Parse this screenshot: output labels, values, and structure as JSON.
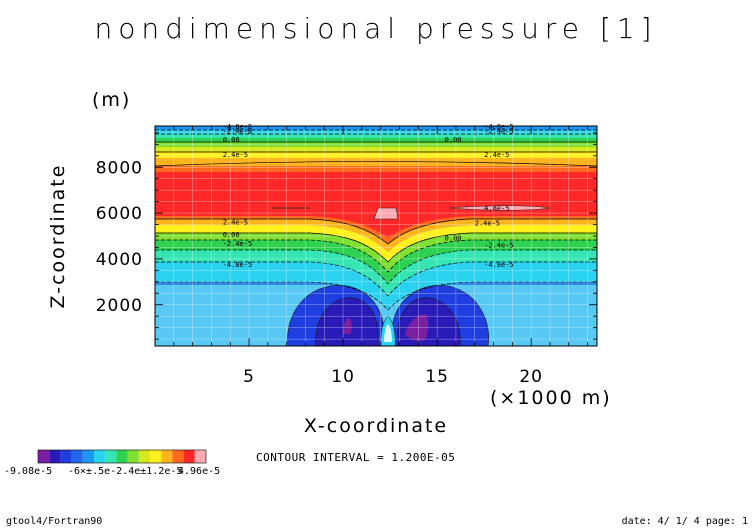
{
  "chart_data": {
    "type": "heatmap",
    "title": "nondimensional pressure [1]",
    "xlabel": "X-coordinate",
    "ylabel": "Z-coordinate",
    "x_unit": "(×1000 m)",
    "y_unit": "(m)",
    "xlim": [
      0.0,
      23.5
    ],
    "ylim": [
      200,
      9800
    ],
    "x_ticks": [
      5,
      10,
      15,
      20
    ],
    "y_ticks": [
      2000,
      4000,
      6000,
      8000
    ],
    "grid": true,
    "colorbar": {
      "colors": [
        "#7a1fa2",
        "#2a1ab8",
        "#1e3ee0",
        "#2466f0",
        "#1e96f5",
        "#2ad2f0",
        "#35e6b4",
        "#2ed250",
        "#7ee030",
        "#d8e81e",
        "#fff01e",
        "#ffb41e",
        "#ff6a1e",
        "#ff2828",
        "#ffaab4"
      ],
      "min_label": "-9.08e-5",
      "tick_labels": [
        "-9.08e-5",
        "-6.4e-5",
        "-5.0e-5",
        "-2.4e-5",
        "1.2e-5",
        "4.96e-5"
      ],
      "overlap_text": "-6×±.5e-2.4e±1.2e-5",
      "max_label": "4.96e-5"
    },
    "contour_interval_text": "CONTOUR INTERVAL =  1.200E-05",
    "contour_labels": [
      {
        "text": "-4.8e-5",
        "x": 3.6,
        "z": 9720
      },
      {
        "text": "-2.4e-5",
        "x": 3.6,
        "z": 9520
      },
      {
        "text": "0.00",
        "x": 3.6,
        "z": 9150
      },
      {
        "text": "2.4e-5",
        "x": 3.6,
        "z": 8500
      },
      {
        "text": "-4.8e-5",
        "x": 17.5,
        "z": 9720
      },
      {
        "text": "-2.4e-5",
        "x": 17.5,
        "z": 9520
      },
      {
        "text": "0.00",
        "x": 15.4,
        "z": 9150
      },
      {
        "text": "2.4e-5",
        "x": 17.5,
        "z": 8500
      },
      {
        "text": "4.8e-5",
        "x": 17.5,
        "z": 6150
      },
      {
        "text": "2.4e-5",
        "x": 3.6,
        "z": 5550
      },
      {
        "text": "0.00",
        "x": 3.6,
        "z": 5000
      },
      {
        "text": "-2.4e-5",
        "x": 3.6,
        "z": 4600
      },
      {
        "text": "2.4e-5",
        "x": 17.0,
        "z": 5500
      },
      {
        "text": "0.00",
        "x": 15.4,
        "z": 4850
      },
      {
        "text": "-2.4e-5",
        "x": 17.5,
        "z": 4550
      },
      {
        "text": "-4.8e-5",
        "x": 3.6,
        "z": 3700
      },
      {
        "text": "-4.8e-5",
        "x": 17.5,
        "z": 3700
      }
    ]
  },
  "footer": {
    "left": "gtool4/Fortran90",
    "right": "date: 4/ 1/ 4 page: 1"
  }
}
